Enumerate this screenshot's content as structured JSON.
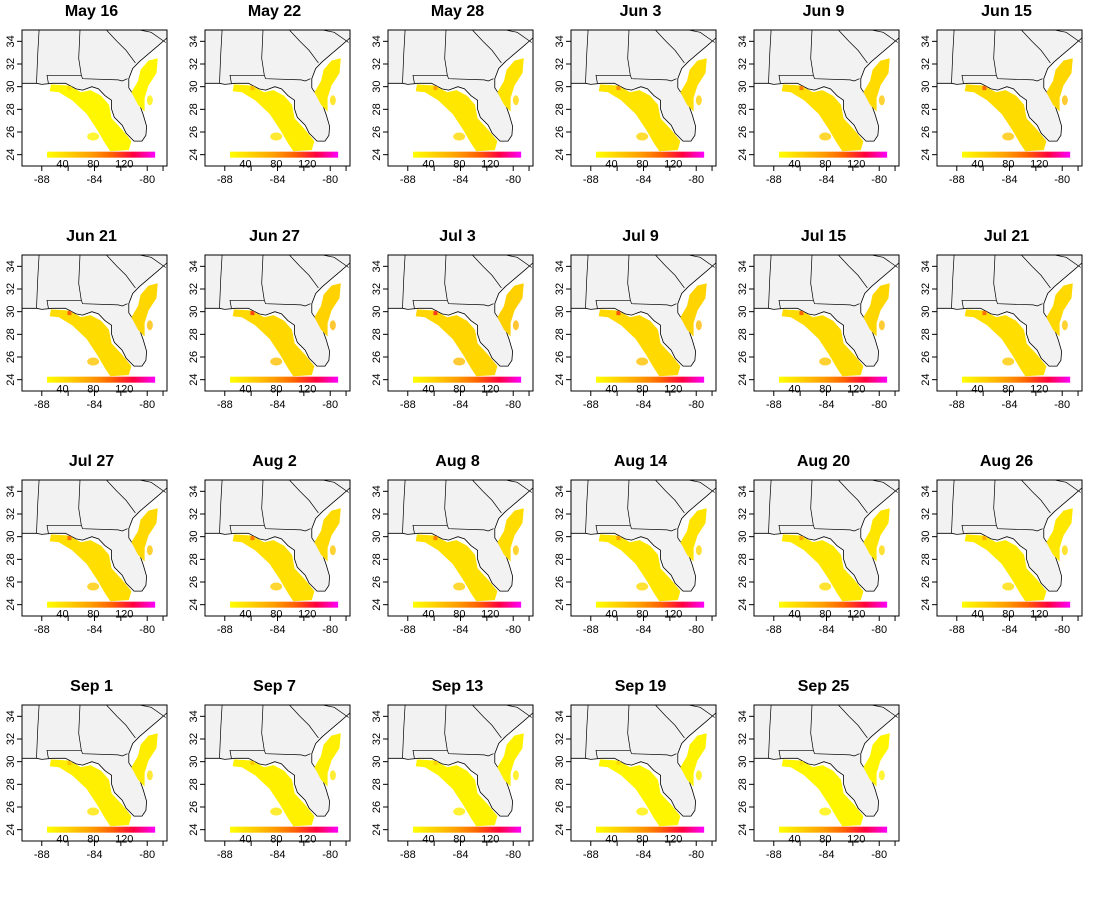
{
  "figure": {
    "x_ticks": [
      "-88",
      "-84",
      "-80"
    ],
    "y_ticks": [
      "24",
      "26",
      "28",
      "30",
      "32",
      "34"
    ],
    "legend_ticks": [
      "40",
      "80",
      "120"
    ],
    "colors": {
      "land": "#f2f2f2",
      "border": "#000000",
      "ramp": [
        "#ffff00",
        "#ffd200",
        "#ffa000",
        "#ff6000",
        "#ff0040",
        "#ff00ff"
      ]
    }
  },
  "chart_data": {
    "type": "heatmap",
    "description_type": "small multiples of gridded intensity over the southeastern US",
    "x_axis": {
      "ticks": [
        -88,
        -84,
        -80
      ],
      "range": [
        -89.5,
        -78.5
      ]
    },
    "y_axis": {
      "ticks": [
        24,
        26,
        28,
        30,
        32,
        34
      ],
      "range": [
        23,
        35
      ]
    },
    "color_scale": {
      "ticks": [
        40,
        80,
        120
      ],
      "range": [
        20,
        160
      ]
    },
    "panels": [
      {
        "title": "May 16",
        "level": 0.1
      },
      {
        "title": "May 22",
        "level": 0.22
      },
      {
        "title": "May 28",
        "level": 0.3
      },
      {
        "title": "Jun 3",
        "level": 0.34
      },
      {
        "title": "Jun 9",
        "level": 0.4
      },
      {
        "title": "Jun 15",
        "level": 0.45
      },
      {
        "title": "Jun 21",
        "level": 0.45
      },
      {
        "title": "Jun 27",
        "level": 0.5
      },
      {
        "title": "Jul 3",
        "level": 0.52
      },
      {
        "title": "Jul 9",
        "level": 0.48
      },
      {
        "title": "Jul 15",
        "level": 0.45
      },
      {
        "title": "Jul 21",
        "level": 0.42
      },
      {
        "title": "Jul 27",
        "level": 0.42
      },
      {
        "title": "Aug 2",
        "level": 0.4
      },
      {
        "title": "Aug 8",
        "level": 0.38
      },
      {
        "title": "Aug 14",
        "level": 0.3
      },
      {
        "title": "Aug 20",
        "level": 0.28
      },
      {
        "title": "Aug 26",
        "level": 0.26
      },
      {
        "title": "Sep 1",
        "level": 0.2
      },
      {
        "title": "Sep 7",
        "level": 0.18
      },
      {
        "title": "Sep 13",
        "level": 0.14
      },
      {
        "title": "Sep 19",
        "level": 0.12
      },
      {
        "title": "Sep 25",
        "level": 0.1
      }
    ]
  }
}
